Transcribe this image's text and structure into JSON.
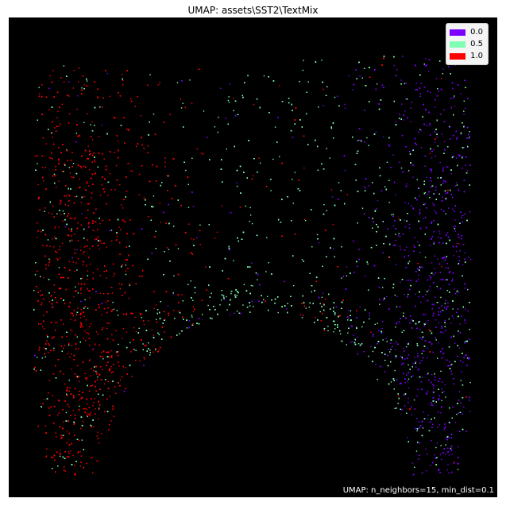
{
  "figure": {
    "title": "UMAP: assets\\SST2\\TextMix",
    "params_note": "UMAP: n_neighbors=15, min_dist=0.1"
  },
  "chart_data": {
    "type": "scatter",
    "title": "UMAP: assets\\SST2\\TextMix",
    "xlabel": "",
    "ylabel": "",
    "background": "#000000",
    "axes": "hidden",
    "legend_position": "top-right",
    "note": "UMAP: n_neighbors=15, min_dist=0.1",
    "series": [
      {
        "name": "0.0",
        "color": "#7b00ff",
        "regions": [
          "right lobe (dense)",
          "right side of central band"
        ]
      },
      {
        "name": "0.5",
        "color": "#80ffb4",
        "regions": [
          "upper middle arch",
          "central arch band",
          "inner edges of both lobes"
        ]
      },
      {
        "name": "1.0",
        "color": "#ff0000",
        "regions": [
          "left lobe (dense)",
          "upper-left arch"
        ]
      }
    ]
  }
}
